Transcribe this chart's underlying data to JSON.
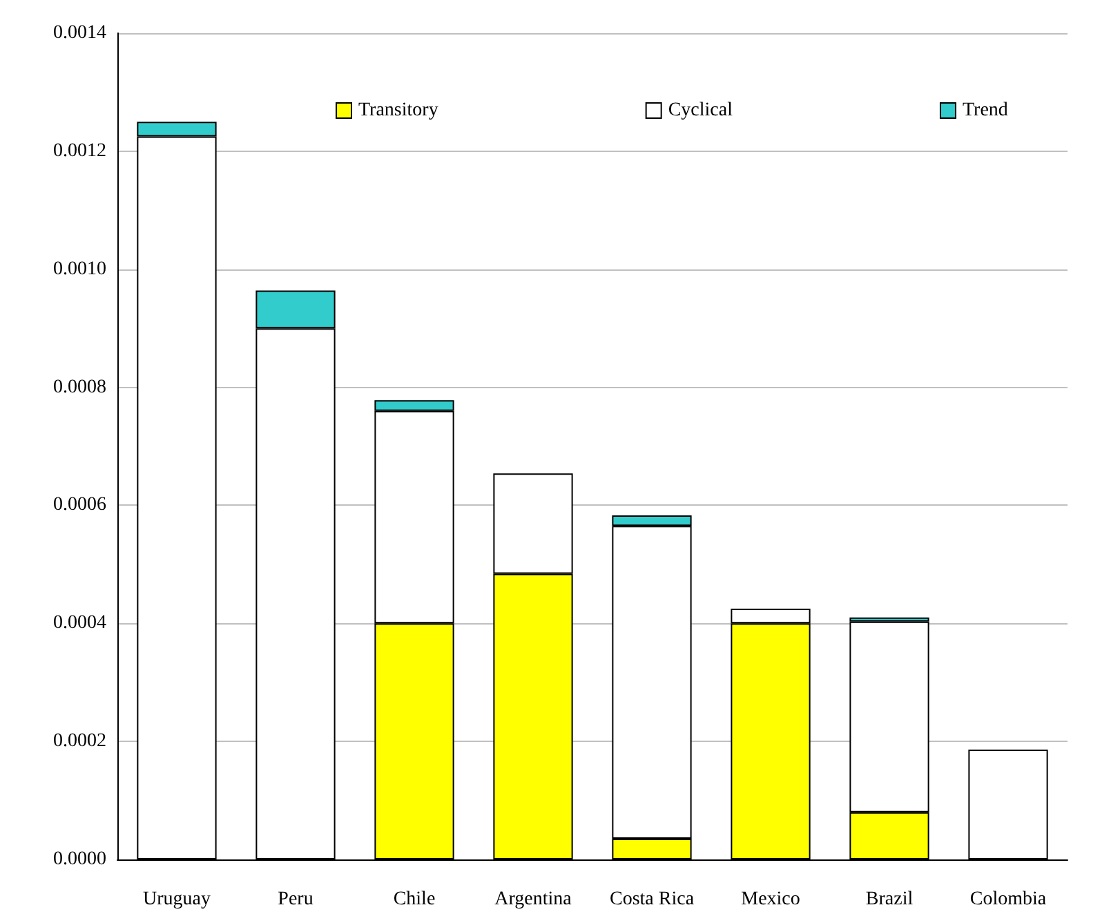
{
  "chart_data": {
    "type": "bar",
    "stacked": true,
    "categories": [
      "Uruguay",
      "Peru",
      "Chile",
      "Argentina",
      "Costa Rica",
      "Mexico",
      "Brazil",
      "Colombia"
    ],
    "series": [
      {
        "name": "Transitory",
        "color": "#ffff00",
        "values": [
          null,
          null,
          0.0004,
          0.000484,
          3.5e-05,
          0.0004,
          8e-05,
          null
        ]
      },
      {
        "name": "Cyclical",
        "color": "#ffffff",
        "values": [
          0.001225,
          0.0009,
          0.00036,
          0.00017,
          0.00053,
          2.5e-05,
          0.000323,
          0.000186
        ]
      },
      {
        "name": "Trend",
        "color": "#33cccc",
        "values": [
          2.5e-05,
          6.4e-05,
          1.8e-05,
          null,
          1.8e-05,
          null,
          7e-06,
          null
        ]
      }
    ],
    "ylim": [
      0,
      0.0014
    ],
    "yticks": [
      {
        "value": 0,
        "label": "0.0000"
      },
      {
        "value": 0.0002,
        "label": "0.0002"
      },
      {
        "value": 0.0004,
        "label": "0.0004"
      },
      {
        "value": 0.0006,
        "label": "0.0006"
      },
      {
        "value": 0.0008,
        "label": "0.0008"
      },
      {
        "value": 0.001,
        "label": "0.0010"
      },
      {
        "value": 0.0012,
        "label": "0.0012"
      },
      {
        "value": 0.0014,
        "label": "0.0014"
      }
    ],
    "grid": "y",
    "legend": "top",
    "marker": "square"
  }
}
